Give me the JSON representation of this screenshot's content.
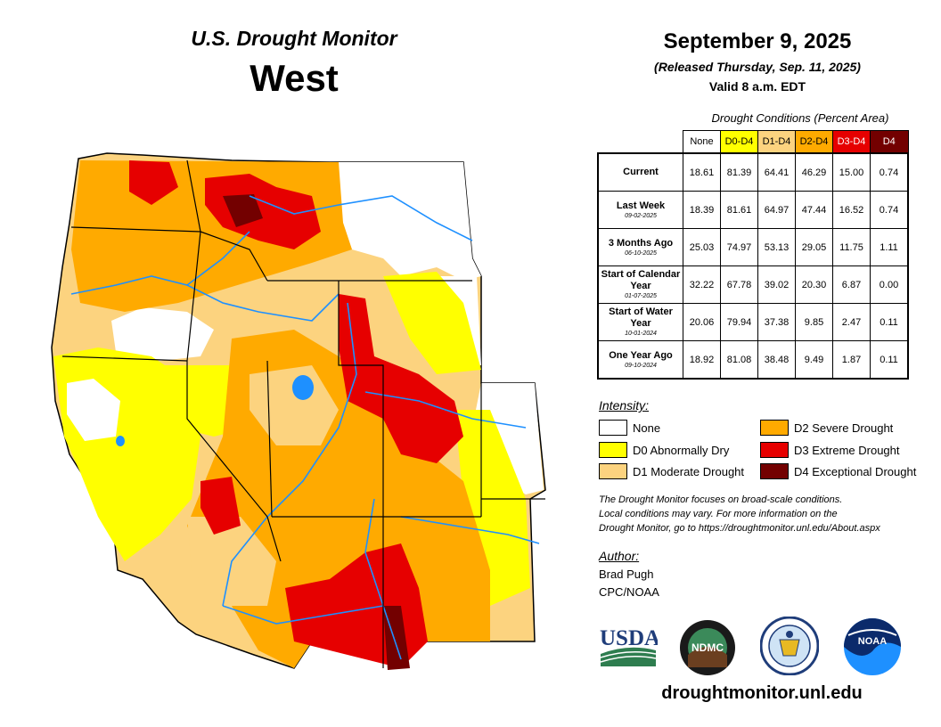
{
  "header": {
    "product": "U.S. Drought Monitor",
    "region": "West",
    "date": "September 9, 2025",
    "released": "(Released Thursday, Sep. 11, 2025)",
    "valid": "Valid 8 a.m. EDT"
  },
  "table": {
    "caption": "Drought Conditions (Percent Area)",
    "columns": [
      "None",
      "D0-D4",
      "D1-D4",
      "D2-D4",
      "D3-D4",
      "D4"
    ],
    "rows": [
      {
        "label": "Current",
        "sublabel": "",
        "values": [
          "18.61",
          "81.39",
          "64.41",
          "46.29",
          "15.00",
          "0.74"
        ]
      },
      {
        "label": "Last Week",
        "sublabel": "09-02-2025",
        "values": [
          "18.39",
          "81.61",
          "64.97",
          "47.44",
          "16.52",
          "0.74"
        ]
      },
      {
        "label": "3 Months Ago",
        "sublabel": "06-10-2025",
        "values": [
          "25.03",
          "74.97",
          "53.13",
          "29.05",
          "11.75",
          "1.11"
        ]
      },
      {
        "label": "Start of Calendar Year",
        "sublabel": "01-07-2025",
        "values": [
          "32.22",
          "67.78",
          "39.02",
          "20.30",
          "6.87",
          "0.00"
        ]
      },
      {
        "label": "Start of Water Year",
        "sublabel": "10-01-2024",
        "values": [
          "20.06",
          "79.94",
          "37.38",
          "9.85",
          "2.47",
          "0.11"
        ]
      },
      {
        "label": "One Year Ago",
        "sublabel": "09-10-2024",
        "values": [
          "18.92",
          "81.08",
          "38.48",
          "9.49",
          "1.87",
          "0.11"
        ]
      }
    ]
  },
  "intensity": {
    "title": "Intensity:",
    "items": [
      {
        "label": "None",
        "color": "#ffffff"
      },
      {
        "label": "D0 Abnormally Dry",
        "color": "#ffff00"
      },
      {
        "label": "D1 Moderate Drought",
        "color": "#fcd37f"
      },
      {
        "label": "D2 Severe Drought",
        "color": "#ffaa00"
      },
      {
        "label": "D3 Extreme Drought",
        "color": "#e60000"
      },
      {
        "label": "D4 Exceptional Drought",
        "color": "#730000"
      }
    ]
  },
  "colors": {
    "none": "#ffffff",
    "d0": "#ffff00",
    "d1": "#fcd37f",
    "d2": "#ffaa00",
    "d3": "#e60000",
    "d4": "#730000",
    "river": "#1e90ff",
    "border": "#000000"
  },
  "note": {
    "line1": "The Drought Monitor focuses on broad-scale conditions.",
    "line2": "Local conditions may vary. For more information on the",
    "line3": "Drought Monitor, go to https://droughtmonitor.unl.edu/About.aspx"
  },
  "author": {
    "title": "Author:",
    "name": "Brad Pugh",
    "org": "CPC/NOAA"
  },
  "logos": {
    "usda": "USDA",
    "ndmc": "NDMC",
    "noaa": "NOAA"
  },
  "website": "droughtmonitor.unl.edu"
}
